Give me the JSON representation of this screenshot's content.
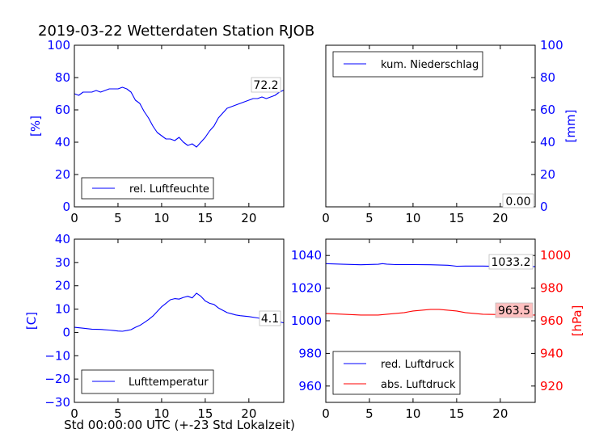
{
  "figure": {
    "title": "2019-03-22 Wetterdaten Station RJOB",
    "xlabel": "Std 00:00:00 UTC (+-23 Std Lokalzeit)"
  },
  "colors": {
    "blue": "#0000ff",
    "red": "#ff0000",
    "black": "#000000",
    "label_bg": "#ffffff",
    "label_bg_red": "#ffc0c0"
  },
  "chart_data": [
    {
      "id": "humidity",
      "type": "line",
      "xlim": [
        0,
        24
      ],
      "ylim": [
        0,
        100
      ],
      "xticks": [
        0,
        5,
        10,
        15,
        20
      ],
      "yticks": [
        0,
        20,
        40,
        60,
        80,
        100
      ],
      "ylabel": "[%]",
      "ylabel_color": "#0000ff",
      "grid": false,
      "legend_position": "lower-left",
      "series": [
        {
          "name": "rel. Luftfeuchte",
          "color": "#0000ff",
          "x": [
            0,
            0.5,
            1,
            1.5,
            2,
            2.5,
            3,
            3.5,
            4,
            4.5,
            5,
            5.5,
            6,
            6.5,
            7,
            7.5,
            8,
            8.5,
            9,
            9.5,
            10,
            10.5,
            11,
            11.5,
            12,
            12.5,
            13,
            13.5,
            14,
            14.5,
            15,
            15.5,
            16,
            16.5,
            17,
            17.5,
            18,
            18.5,
            19,
            19.5,
            20,
            20.5,
            21,
            21.5,
            22,
            22.5,
            23,
            23.5,
            24
          ],
          "y": [
            70,
            69,
            71,
            71,
            71,
            72,
            71,
            72,
            73,
            73,
            73,
            74,
            73,
            71,
            66,
            64,
            59,
            55,
            50,
            46,
            44,
            42,
            42,
            41,
            43,
            40,
            38,
            39,
            37,
            40,
            43,
            47,
            50,
            55,
            58,
            61,
            62,
            63,
            64,
            65,
            66,
            67,
            67,
            68,
            67,
            68,
            69,
            71,
            72.2
          ]
        }
      ],
      "value_label": "72.2"
    },
    {
      "id": "precipitation",
      "type": "line",
      "xlim": [
        0,
        24
      ],
      "ylim": [
        0,
        100
      ],
      "xticks": [
        0,
        5,
        10,
        15,
        20
      ],
      "yticks": [
        0,
        20,
        40,
        60,
        80,
        100
      ],
      "ylabel": "[mm]",
      "ylabel_color": "#0000ff",
      "y_axis_side": "right",
      "grid": false,
      "legend_position": "upper-left",
      "series": [
        {
          "name": "kum. Niederschlag",
          "color": "#0000ff",
          "x": [
            0,
            24
          ],
          "y": [
            0,
            0
          ]
        }
      ],
      "value_label": "0.00"
    },
    {
      "id": "temperature",
      "type": "line",
      "xlim": [
        0,
        24
      ],
      "ylim": [
        -30,
        40
      ],
      "xticks": [
        0,
        5,
        10,
        15,
        20
      ],
      "yticks": [
        -30,
        -20,
        -10,
        0,
        10,
        20,
        30,
        40
      ],
      "ytick_labels": [
        "−30",
        "−20",
        "−10",
        "0",
        "10",
        "20",
        "30",
        "40"
      ],
      "ylabel": "[C]",
      "ylabel_color": "#0000ff",
      "grid": false,
      "legend_position": "lower-left",
      "series": [
        {
          "name": "Lufttemperatur",
          "color": "#0000ff",
          "x": [
            0,
            1,
            2,
            3,
            4,
            4.5,
            5,
            5.5,
            6,
            6.5,
            7,
            7.5,
            8,
            8.5,
            9,
            9.5,
            10,
            10.5,
            11,
            11.5,
            12,
            12.5,
            13,
            13.5,
            14,
            14.5,
            15,
            15.5,
            16,
            16.5,
            17,
            17.5,
            18,
            18.5,
            19,
            20,
            21,
            22,
            23,
            24
          ],
          "y": [
            2.2,
            1.8,
            1.4,
            1.3,
            1.0,
            0.8,
            0.6,
            0.5,
            0.8,
            1.2,
            2.2,
            3.0,
            4.2,
            5.5,
            7.0,
            9.0,
            11.0,
            12.5,
            14.0,
            14.5,
            14.3,
            15.0,
            15.5,
            14.8,
            16.8,
            15.5,
            13.5,
            12.5,
            12.0,
            10.5,
            9.5,
            8.5,
            8.0,
            7.5,
            7.2,
            6.8,
            6.2,
            5.6,
            5.0,
            4.1
          ]
        }
      ],
      "value_label": "4.1"
    },
    {
      "id": "pressure",
      "type": "line",
      "xlim": [
        0,
        24
      ],
      "ylim_left": [
        950,
        1050
      ],
      "ylim_right": [
        910,
        1010
      ],
      "xticks": [
        0,
        5,
        10,
        15,
        20
      ],
      "yticks_left": [
        960,
        980,
        1000,
        1020,
        1040
      ],
      "yticks_right": [
        920,
        940,
        960,
        980,
        1000
      ],
      "ylabel_right": "[hPa]",
      "ylabel_right_color": "#ff0000",
      "grid": false,
      "legend_position": "lower-left",
      "series": [
        {
          "name": "red. Luftdruck",
          "color": "#0000ff",
          "axis": "left",
          "x": [
            0,
            2,
            4,
            6,
            6.5,
            7,
            8,
            10,
            12,
            14,
            15,
            16,
            18,
            20,
            22,
            24
          ],
          "y": [
            1035.0,
            1034.6,
            1034.3,
            1034.6,
            1035.0,
            1034.7,
            1034.4,
            1034.4,
            1034.3,
            1034.0,
            1033.4,
            1033.5,
            1033.5,
            1033.3,
            1033.2,
            1033.2
          ]
        },
        {
          "name": "abs. Luftdruck",
          "color": "#ff0000",
          "axis": "right",
          "x": [
            0,
            2,
            4,
            6,
            7,
            8,
            9,
            10,
            11,
            12,
            13,
            14,
            15,
            16,
            17,
            18,
            20,
            22,
            24
          ],
          "y": [
            964.5,
            964.0,
            963.5,
            963.5,
            964.0,
            964.5,
            965.0,
            966.0,
            966.5,
            967.0,
            967.0,
            966.5,
            966.0,
            965.0,
            964.5,
            964.0,
            963.8,
            963.5,
            963.5
          ]
        }
      ],
      "value_labels": [
        "1033.2",
        "963.5"
      ]
    }
  ]
}
